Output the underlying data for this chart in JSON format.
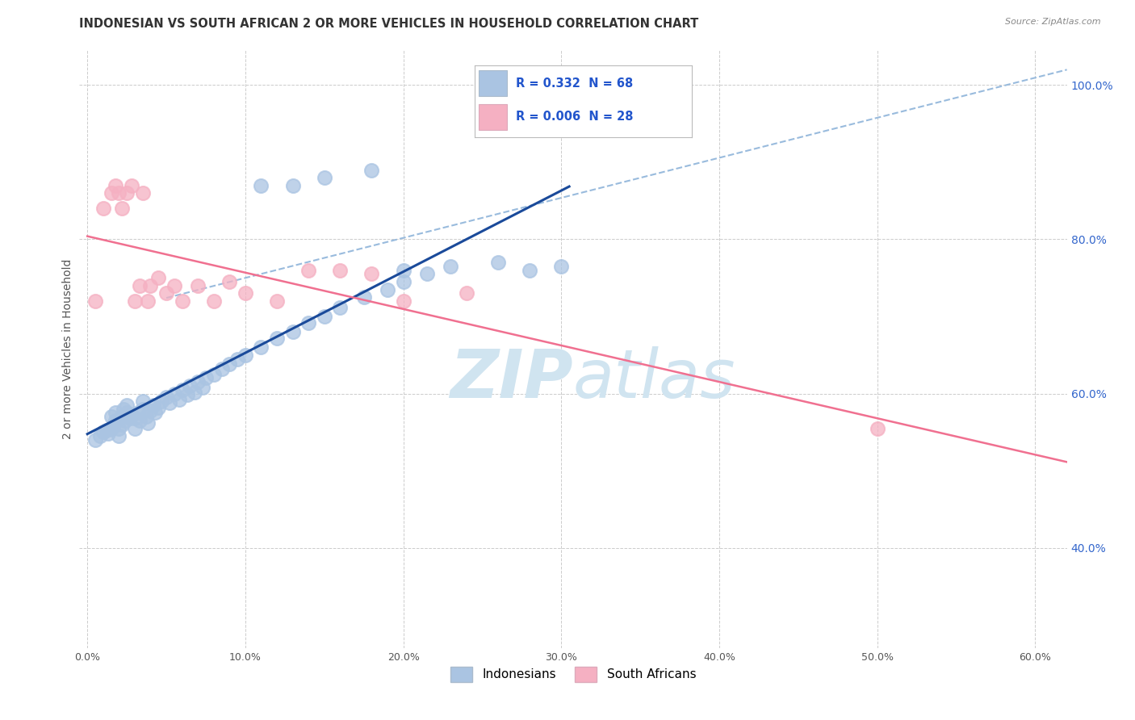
{
  "title": "INDONESIAN VS SOUTH AFRICAN 2 OR MORE VEHICLES IN HOUSEHOLD CORRELATION CHART",
  "source": "Source: ZipAtlas.com",
  "ylabel": "2 or more Vehicles in Household",
  "legend_label_blue": "Indonesians",
  "legend_label_pink": "South Africans",
  "R_blue": 0.332,
  "N_blue": 68,
  "R_pink": 0.006,
  "N_pink": 28,
  "xlim": [
    -0.005,
    0.62
  ],
  "ylim": [
    0.27,
    1.045
  ],
  "xticks": [
    0.0,
    0.1,
    0.2,
    0.3,
    0.4,
    0.5,
    0.6
  ],
  "yticks": [
    0.4,
    0.6,
    0.8,
    1.0
  ],
  "ytick_labels": [
    "40.0%",
    "60.0%",
    "80.0%",
    "100.0%"
  ],
  "xtick_labels": [
    "0.0%",
    "10.0%",
    "20.0%",
    "30.0%",
    "40.0%",
    "50.0%",
    "60.0%"
  ],
  "color_blue": "#aac4e2",
  "color_pink": "#f5b0c2",
  "trendline_blue": "#1a4a9a",
  "trendline_pink": "#f07090",
  "refline_color": "#99bbdd",
  "grid_color": "#cccccc",
  "watermark_color": "#d0e4f0",
  "blue_points_x": [
    0.005,
    0.008,
    0.01,
    0.012,
    0.013,
    0.015,
    0.015,
    0.017,
    0.018,
    0.018,
    0.02,
    0.02,
    0.022,
    0.022,
    0.023,
    0.024,
    0.025,
    0.025,
    0.027,
    0.028,
    0.03,
    0.03,
    0.032,
    0.033,
    0.035,
    0.035,
    0.037,
    0.038,
    0.04,
    0.042,
    0.043,
    0.045,
    0.047,
    0.05,
    0.052,
    0.055,
    0.058,
    0.06,
    0.063,
    0.065,
    0.068,
    0.07,
    0.073,
    0.075,
    0.08,
    0.085,
    0.09,
    0.095,
    0.1,
    0.11,
    0.12,
    0.13,
    0.14,
    0.15,
    0.16,
    0.175,
    0.19,
    0.2,
    0.215,
    0.23,
    0.11,
    0.13,
    0.28,
    0.3,
    0.15,
    0.18,
    0.2,
    0.26
  ],
  "blue_points_y": [
    0.54,
    0.545,
    0.55,
    0.552,
    0.548,
    0.555,
    0.57,
    0.56,
    0.565,
    0.575,
    0.545,
    0.555,
    0.56,
    0.57,
    0.58,
    0.565,
    0.575,
    0.585,
    0.568,
    0.572,
    0.555,
    0.568,
    0.575,
    0.565,
    0.58,
    0.59,
    0.57,
    0.562,
    0.578,
    0.585,
    0.575,
    0.582,
    0.59,
    0.595,
    0.588,
    0.6,
    0.592,
    0.605,
    0.598,
    0.61,
    0.602,
    0.615,
    0.608,
    0.62,
    0.625,
    0.632,
    0.638,
    0.645,
    0.65,
    0.66,
    0.672,
    0.68,
    0.692,
    0.7,
    0.712,
    0.725,
    0.735,
    0.745,
    0.755,
    0.765,
    0.87,
    0.87,
    0.76,
    0.765,
    0.88,
    0.89,
    0.76,
    0.77
  ],
  "pink_points_x": [
    0.005,
    0.01,
    0.015,
    0.018,
    0.02,
    0.022,
    0.025,
    0.028,
    0.03,
    0.033,
    0.035,
    0.038,
    0.04,
    0.045,
    0.05,
    0.055,
    0.06,
    0.07,
    0.08,
    0.09,
    0.1,
    0.12,
    0.14,
    0.16,
    0.18,
    0.2,
    0.24,
    0.5
  ],
  "pink_points_y": [
    0.72,
    0.84,
    0.86,
    0.87,
    0.86,
    0.84,
    0.86,
    0.87,
    0.72,
    0.74,
    0.86,
    0.72,
    0.74,
    0.75,
    0.73,
    0.74,
    0.72,
    0.74,
    0.72,
    0.745,
    0.73,
    0.72,
    0.76,
    0.76,
    0.755,
    0.72,
    0.73,
    0.555
  ],
  "title_fontsize": 10.5,
  "axis_fontsize": 9,
  "legend_fontsize": 11
}
